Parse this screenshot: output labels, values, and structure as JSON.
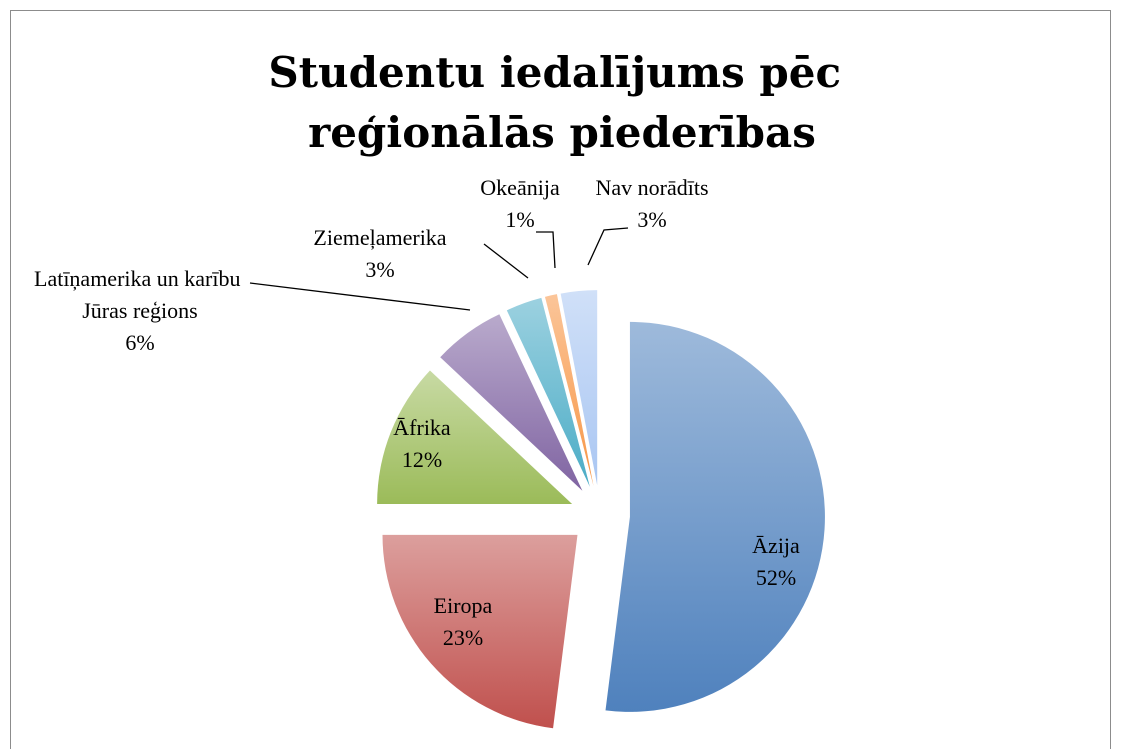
{
  "chart_data": {
    "type": "pie",
    "title": "Studentu iedalījums pēc reģionālās piederības",
    "categories": [
      "Āzija",
      "Eiropa",
      "Āfrika",
      "Latīņamerika un karību Jūras reģions",
      "Ziemeļamerika",
      "Okeānija",
      "Nav norādīts"
    ],
    "values": [
      52,
      23,
      12,
      6,
      3,
      1,
      3
    ],
    "value_labels": [
      "52%",
      "23%",
      "12%",
      "6%",
      "3%",
      "1%",
      "3%"
    ],
    "colors": [
      "#4f81bd",
      "#c0504d",
      "#9bbb59",
      "#8064a2",
      "#4bacc6",
      "#f79646",
      "#a9c6f2"
    ],
    "start_angle": 0,
    "direction": "clockwise",
    "exploded": true
  }
}
